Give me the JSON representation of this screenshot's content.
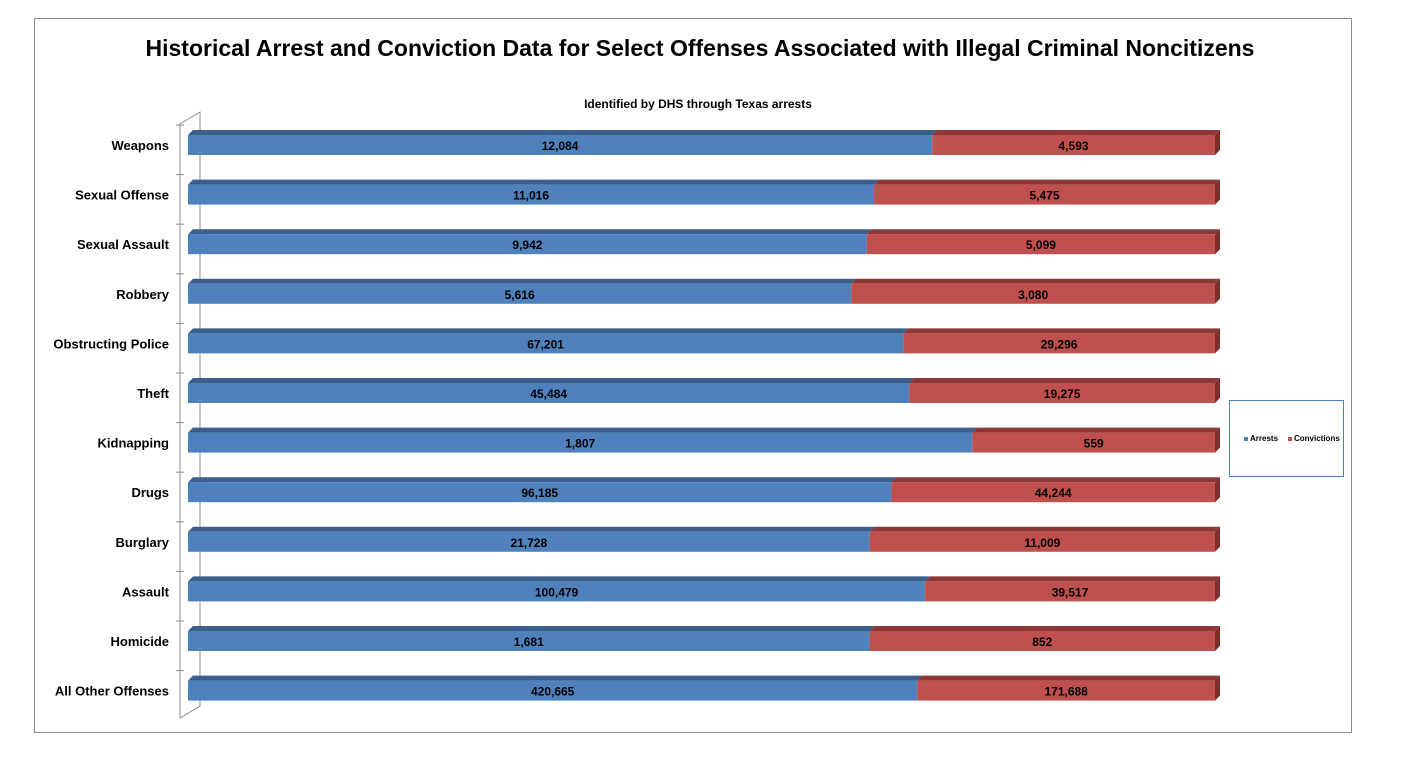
{
  "colors": {
    "arrests": "#4f81bd",
    "arrests_top": "#3a5f8c",
    "convictions": "#c0504d",
    "convictions_top": "#8c3836",
    "convictions_side": "#7d2f2d",
    "frame": "#8c8c8c",
    "legend_border": "#4a7ebb"
  },
  "chart_data": {
    "type": "bar",
    "orientation": "horizontal",
    "stacked": "100%",
    "style": "3d",
    "title": "Historical Arrest and Conviction Data for Select Offenses Associated with Illegal Criminal Noncitizens",
    "subtitle": "Identified by DHS through Texas arrests",
    "categories": [
      "Weapons",
      "Sexual Offense",
      "Sexual Assault",
      "Robbery",
      "Obstructing Police",
      "Theft",
      "Kidnapping",
      "Drugs",
      "Burglary",
      "Assault",
      "Homicide",
      "All Other Offenses"
    ],
    "series": [
      {
        "name": "Arrests",
        "values": [
          12084,
          11016,
          9942,
          5616,
          67201,
          45484,
          1807,
          96185,
          21728,
          100479,
          1681,
          420665
        ],
        "labels": [
          "12,084",
          "11,016",
          "9,942",
          "5,616",
          "67,201",
          "45,484",
          "1,807",
          "96,185",
          "21,728",
          "100,479",
          "1,681",
          "420,665"
        ]
      },
      {
        "name": "Convictions",
        "values": [
          4593,
          5475,
          5099,
          3080,
          29296,
          19275,
          559,
          44244,
          11009,
          39517,
          852,
          171688
        ],
        "labels": [
          "4,593",
          "5,475",
          "5,099",
          "3,080",
          "29,296",
          "19,275",
          "559",
          "44,244",
          "11,009",
          "39,517",
          "852",
          "171,688"
        ]
      }
    ],
    "grid": false,
    "legend": "right"
  },
  "legend": {
    "items": [
      {
        "label": "Arrests"
      },
      {
        "label": "Convictions"
      }
    ]
  }
}
